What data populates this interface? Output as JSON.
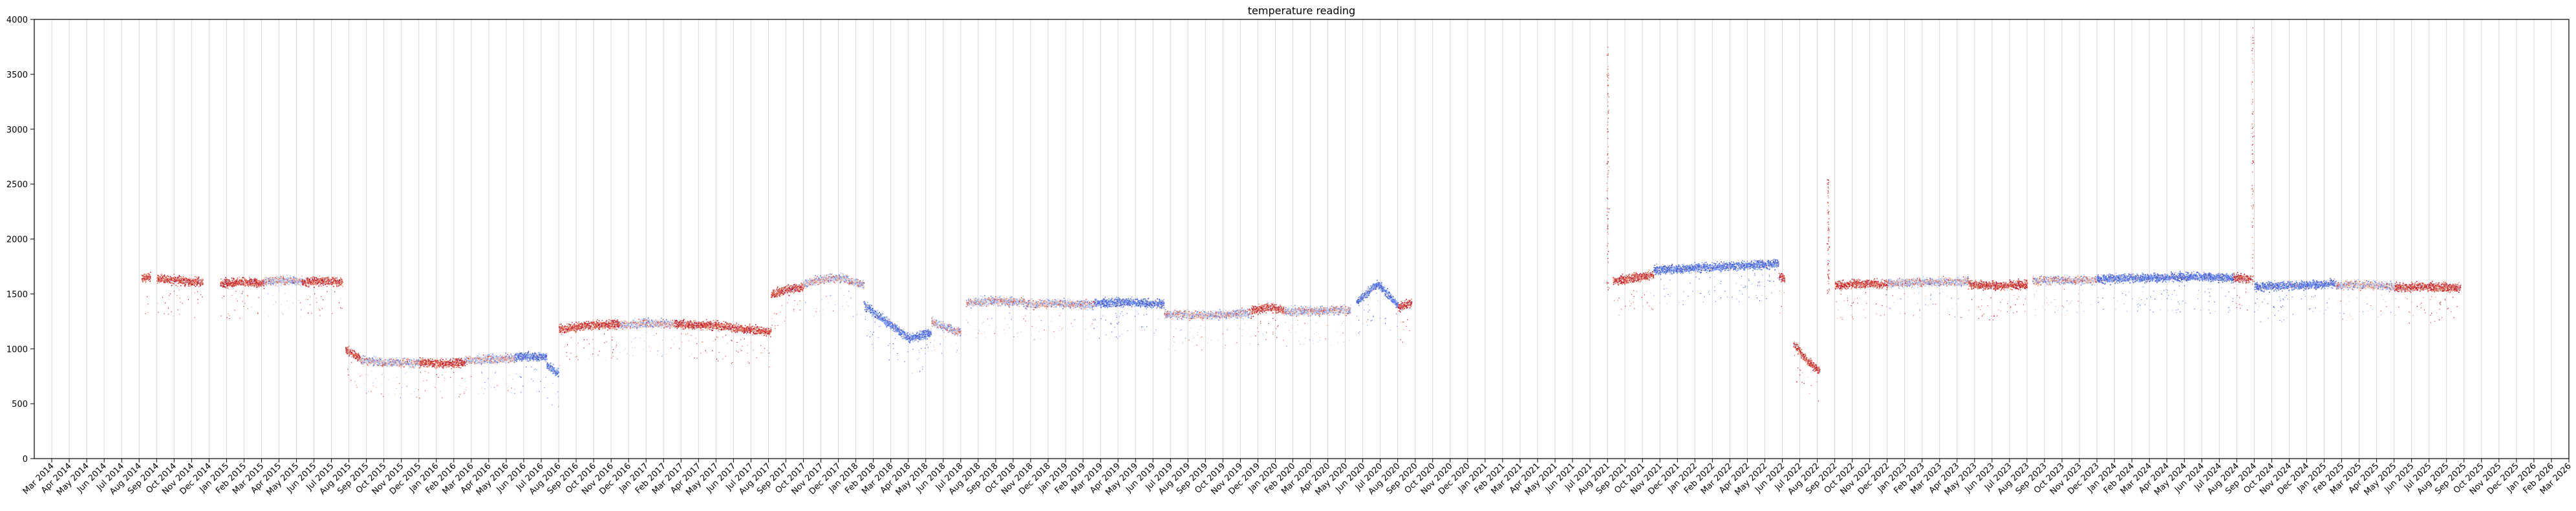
{
  "chart_data": {
    "type": "scatter",
    "title": "temperature reading",
    "xlabel": "",
    "ylabel": "",
    "ylim": [
      0,
      4000
    ],
    "xlim": [
      "2014-02",
      "2026-03"
    ],
    "yticks": [
      0,
      500,
      1000,
      1500,
      2000,
      2500,
      3000,
      3500,
      4000
    ],
    "xticks": [
      "Mar 2014",
      "Apr 2014",
      "May 2014",
      "Jun 2014",
      "Jul 2014",
      "Aug 2014",
      "Sep 2014",
      "Oct 2014",
      "Nov 2014",
      "Dec 2014",
      "Jan 2015",
      "Feb 2015",
      "Mar 2015",
      "Apr 2015",
      "May 2015",
      "Jun 2015",
      "Jul 2015",
      "Aug 2015",
      "Sep 2015",
      "Oct 2015",
      "Nov 2015",
      "Dec 2015",
      "Jan 2016",
      "Feb 2016",
      "Mar 2016",
      "Apr 2016",
      "May 2016",
      "Jun 2016",
      "Jul 2016",
      "Aug 2016",
      "Sep 2016",
      "Oct 2016",
      "Nov 2016",
      "Dec 2016",
      "Jan 2017",
      "Feb 2017",
      "Mar 2017",
      "Apr 2017",
      "May 2017",
      "Jun 2017",
      "Jul 2017",
      "Aug 2017",
      "Sep 2017",
      "Oct 2017",
      "Nov 2017",
      "Dec 2017",
      "Jan 2018",
      "Feb 2018",
      "Mar 2018",
      "Apr 2018",
      "May 2018",
      "Jun 2018",
      "Jul 2018",
      "Aug 2018",
      "Sep 2018",
      "Oct 2018",
      "Nov 2018",
      "Dec 2018",
      "Jan 2019",
      "Feb 2019",
      "Mar 2019",
      "Apr 2019",
      "May 2019",
      "Jun 2019",
      "Jul 2019",
      "Aug 2019",
      "Sep 2019",
      "Oct 2019",
      "Nov 2019",
      "Dec 2019",
      "Jan 2020",
      "Feb 2020",
      "Mar 2020",
      "Apr 2020",
      "May 2020",
      "Jun 2020",
      "Jul 2020",
      "Aug 2020",
      "Sep 2020",
      "Oct 2020",
      "Nov 2020",
      "Dec 2020",
      "Jan 2021",
      "Feb 2021",
      "Mar 2021",
      "Apr 2021",
      "May 2021",
      "Jun 2021",
      "Jul 2021",
      "Aug 2021",
      "Sep 2021",
      "Oct 2021",
      "Nov 2021",
      "Dec 2021",
      "Jan 2022",
      "Feb 2022",
      "Mar 2022",
      "Apr 2022",
      "May 2022",
      "Jun 2022",
      "Jul 2022",
      "Aug 2022",
      "Sep 2022",
      "Oct 2022",
      "Nov 2022",
      "Dec 2022",
      "Jan 2023",
      "Feb 2023",
      "Mar 2023",
      "Apr 2023",
      "May 2023",
      "Jun 2023",
      "Jul 2023",
      "Aug 2023",
      "Sep 2023",
      "Oct 2023",
      "Nov 2023",
      "Dec 2023",
      "Jan 2024",
      "Feb 2024",
      "Mar 2024",
      "Apr 2024",
      "May 2024",
      "Jun 2024",
      "Jul 2024",
      "Aug 2024",
      "Sep 2024",
      "Oct 2024",
      "Nov 2024",
      "Dec 2024",
      "Jan 2025",
      "Feb 2025",
      "Mar 2025",
      "Apr 2025",
      "May 2025",
      "Jun 2025",
      "Jul 2025",
      "Aug 2025",
      "Sep 2025",
      "Oct 2025",
      "Nov 2025",
      "Dec 2025",
      "Jan 2026",
      "Feb 2026",
      "Mar 2026"
    ],
    "grid": "vertical",
    "colormap": "coolwarm",
    "colors": {
      "cool": "#3b4cc0",
      "mid": "#dddddd",
      "warm": "#b40426"
    },
    "segments": [
      {
        "start": "2014-08-05",
        "end": "2014-08-20",
        "values": [
          1640,
          1660
        ],
        "color": "warm"
      },
      {
        "start": "2014-09-01",
        "end": "2014-11-20",
        "values": [
          1640,
          1625,
          1610
        ],
        "color": "warm"
      },
      {
        "start": "2014-12-20",
        "end": "2015-03-05",
        "values": [
          1600,
          1610,
          1600
        ],
        "color": "warm"
      },
      {
        "start": "2015-03-05",
        "end": "2015-05-10",
        "values": [
          1620,
          1625,
          1620
        ],
        "color": "mid"
      },
      {
        "start": "2015-05-10",
        "end": "2015-07-20",
        "values": [
          1615,
          1620,
          1610
        ],
        "color": "warm"
      },
      {
        "start": "2015-07-25",
        "end": "2015-08-20",
        "values": [
          1000,
          960,
          920
        ],
        "color": "warm"
      },
      {
        "start": "2015-08-20",
        "end": "2015-12-01",
        "values": [
          900,
          880,
          870
        ],
        "color": "mid"
      },
      {
        "start": "2015-12-01",
        "end": "2016-02-20",
        "values": [
          880,
          870,
          880
        ],
        "color": "warm"
      },
      {
        "start": "2016-02-20",
        "end": "2016-05-15",
        "values": [
          900,
          910,
          920
        ],
        "color": "mid"
      },
      {
        "start": "2016-05-15",
        "end": "2016-07-10",
        "values": [
          930,
          935,
          930
        ],
        "color": "cool"
      },
      {
        "start": "2016-07-10",
        "end": "2016-07-31",
        "values": [
          850,
          780
        ],
        "color": "cool"
      },
      {
        "start": "2016-08-01",
        "end": "2016-11-15",
        "values": [
          1180,
          1220,
          1230
        ],
        "color": "warm"
      },
      {
        "start": "2016-11-15",
        "end": "2017-02-20",
        "values": [
          1220,
          1240,
          1230
        ],
        "color": "mid"
      },
      {
        "start": "2017-02-20",
        "end": "2017-05-20",
        "values": [
          1230,
          1220,
          1210
        ],
        "color": "warm"
      },
      {
        "start": "2017-05-20",
        "end": "2017-08-05",
        "values": [
          1200,
          1180,
          1160
        ],
        "color": "warm"
      },
      {
        "start": "2017-08-05",
        "end": "2017-10-01",
        "values": [
          1500,
          1540,
          1570
        ],
        "color": "warm"
      },
      {
        "start": "2017-10-01",
        "end": "2018-01-15",
        "values": [
          1600,
          1640,
          1650,
          1580
        ],
        "color": "mid"
      },
      {
        "start": "2018-01-15",
        "end": "2018-05-10",
        "values": [
          1400,
          1250,
          1100,
          1150
        ],
        "color": "cool"
      },
      {
        "start": "2018-05-10",
        "end": "2018-07-01",
        "values": [
          1250,
          1200,
          1150
        ],
        "color": "mid"
      },
      {
        "start": "2018-07-10",
        "end": "2018-10-20",
        "values": [
          1420,
          1440,
          1430
        ],
        "color": "mid"
      },
      {
        "start": "2018-10-20",
        "end": "2019-02-20",
        "values": [
          1410,
          1420,
          1400
        ],
        "color": "mid"
      },
      {
        "start": "2019-02-20",
        "end": "2019-06-20",
        "values": [
          1420,
          1430,
          1410
        ],
        "color": "cool"
      },
      {
        "start": "2019-06-20",
        "end": "2019-11-20",
        "values": [
          1320,
          1310,
          1330
        ],
        "color": "mid"
      },
      {
        "start": "2019-11-20",
        "end": "2020-01-15",
        "values": [
          1350,
          1380,
          1360
        ],
        "color": "warm"
      },
      {
        "start": "2020-01-15",
        "end": "2020-05-10",
        "values": [
          1340,
          1350,
          1360
        ],
        "color": "mid"
      },
      {
        "start": "2020-05-20",
        "end": "2020-08-01",
        "values": [
          1420,
          1600,
          1400
        ],
        "color": "cool"
      },
      {
        "start": "2020-08-01",
        "end": "2020-08-25",
        "values": [
          1380,
          1420
        ],
        "color": "warm"
      },
      {
        "start": "2021-08-10",
        "end": "2021-10-20",
        "values": [
          1620,
          1650,
          1680
        ],
        "color": "warm"
      },
      {
        "start": "2021-10-20",
        "end": "2022-05-25",
        "values": [
          1720,
          1740,
          1760,
          1780
        ],
        "color": "cool"
      },
      {
        "start": "2022-05-25",
        "end": "2022-06-05",
        "values": [
          1660,
          1640
        ],
        "color": "warm"
      },
      {
        "start": "2022-06-20",
        "end": "2022-08-05",
        "values": [
          1050,
          900,
          800
        ],
        "color": "warm"
      },
      {
        "start": "2022-09-01",
        "end": "2022-12-01",
        "values": [
          1580,
          1600,
          1590
        ],
        "color": "warm"
      },
      {
        "start": "2022-12-01",
        "end": "2023-04-20",
        "values": [
          1600,
          1610,
          1620
        ],
        "color": "mid"
      },
      {
        "start": "2023-04-20",
        "end": "2023-08-01",
        "values": [
          1590,
          1580,
          1590
        ],
        "color": "warm"
      },
      {
        "start": "2023-08-10",
        "end": "2023-12-01",
        "values": [
          1620,
          1630,
          1630
        ],
        "color": "mid"
      },
      {
        "start": "2023-12-01",
        "end": "2024-07-25",
        "values": [
          1640,
          1650,
          1660,
          1650
        ],
        "color": "cool"
      },
      {
        "start": "2024-07-25",
        "end": "2024-08-25",
        "values": [
          1650,
          1640
        ],
        "color": "warm"
      },
      {
        "start": "2024-09-01",
        "end": "2025-01-20",
        "values": [
          1570,
          1580,
          1600
        ],
        "color": "cool"
      },
      {
        "start": "2025-01-20",
        "end": "2025-05-01",
        "values": [
          1580,
          1590,
          1570
        ],
        "color": "mid"
      },
      {
        "start": "2025-05-01",
        "end": "2025-08-25",
        "values": [
          1560,
          1570,
          1560
        ],
        "color": "warm"
      }
    ],
    "spikes": [
      {
        "date": "2021-08-01",
        "low": 1500,
        "high": 3800,
        "color": "warm"
      },
      {
        "date": "2022-08-20",
        "low": 1500,
        "high": 2550,
        "color": "warm"
      },
      {
        "date": "2024-08-28",
        "low": 1550,
        "high": 3950,
        "color": "warm"
      }
    ]
  }
}
